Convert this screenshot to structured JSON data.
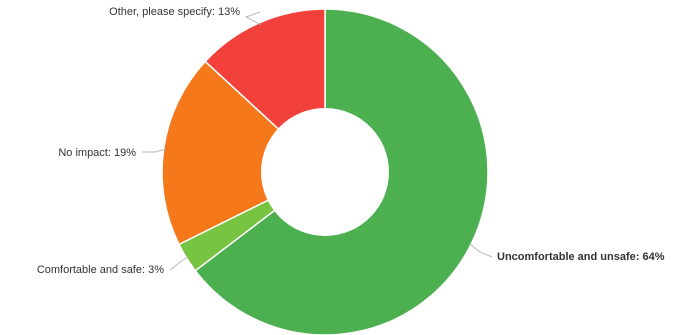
{
  "chart_data": {
    "type": "pie",
    "donut": true,
    "categories": [
      "Uncomfortable and unsafe",
      "Comfortable and safe",
      "No impact",
      "Other, please specify"
    ],
    "values": [
      64,
      3,
      19,
      13
    ],
    "labels": [
      "Uncomfortable and unsafe: 64%",
      "Comfortable and safe: 3%",
      "No impact: 19%",
      "Other, please specify: 13%"
    ],
    "colors": [
      "#4caf50",
      "#76c442",
      "#f5791b",
      "#f2413b"
    ],
    "label_colors": [
      "#2e3a7a",
      "#333333",
      "#333333",
      "#333333"
    ],
    "legend": "none"
  }
}
